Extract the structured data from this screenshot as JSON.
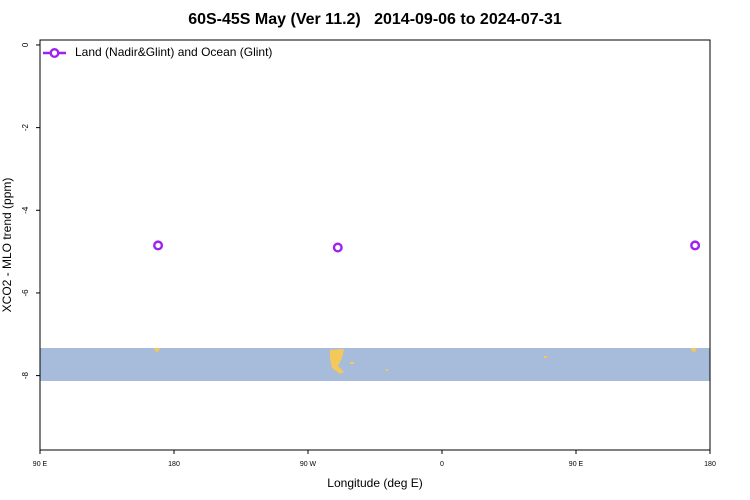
{
  "chart_data": {
    "type": "scatter",
    "title": "60S-45S May (Ver 11.2)   2014-09-06 to 2024-07-31",
    "x_label": "Longitude (deg E)",
    "y_label": "XCO2 - MLO trend (ppm)",
    "xlim": [
      90,
      540
    ],
    "xticks": [
      {
        "value": 90,
        "label": "90 E"
      },
      180,
      {
        "value": 270,
        "label": "90 W"
      },
      {
        "value": 360,
        "label": "0"
      },
      {
        "value": 450,
        "label": "90 E"
      },
      {
        "value": 540,
        "label": "180"
      }
    ],
    "ylim": [
      -9.8,
      0.12
    ],
    "yticks": [
      0,
      -2,
      -4,
      -6,
      -8
    ],
    "legend": "top-left",
    "series": [
      {
        "name": "Land (Nadir&Glint) and Ocean (Glint)",
        "color": "#a020f0",
        "x": [
          169.3,
          290,
          530
        ],
        "values": [
          -4.85,
          -4.9,
          -4.85
        ]
      }
    ]
  }
}
